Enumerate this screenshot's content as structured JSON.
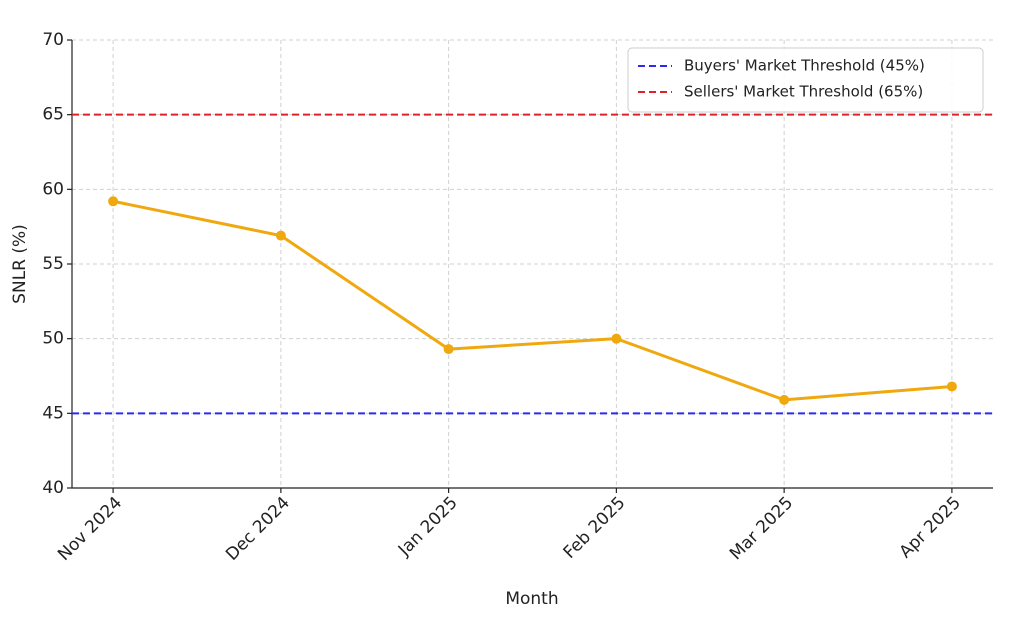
{
  "chart_data": {
    "type": "line",
    "x_label": "Month",
    "y_label": "SNLR (%)",
    "categories": [
      "Nov 2024",
      "Dec 2024",
      "Jan 2025",
      "Feb 2025",
      "Mar 2025",
      "Apr 2025"
    ],
    "series": [
      {
        "color": "#f0a80f",
        "values": [
          59.2,
          56.9,
          49.3,
          50.0,
          45.9,
          46.8
        ]
      }
    ],
    "thresholds": [
      {
        "name": "Buyers' Market Threshold (45%)",
        "value": 45,
        "color": "#2b2bf0"
      },
      {
        "name": "Sellers' Market Threshold (65%)",
        "value": 65,
        "color": "#e0202a"
      }
    ],
    "ylim": [
      40,
      70
    ],
    "yticks": [
      40,
      45,
      50,
      55,
      60,
      65,
      70
    ],
    "grid": true,
    "legend": "upper right"
  }
}
